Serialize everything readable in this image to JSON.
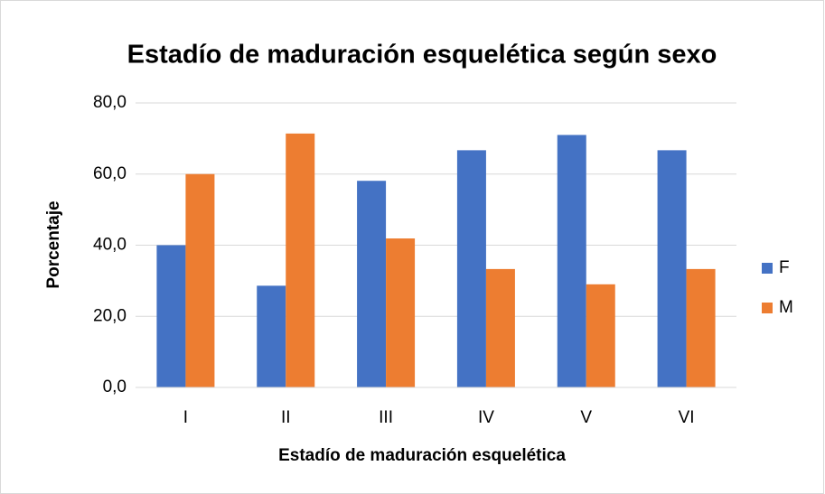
{
  "chart_data": {
    "type": "bar",
    "title": "Estadío de maduración esquelética según sexo",
    "x_label": "Estadío de maduración esquelética",
    "y_label": "Porcentaje",
    "categories": [
      "I",
      "II",
      "III",
      "IV",
      "V",
      "VI"
    ],
    "series": [
      {
        "name": "F",
        "color": "#4472c4",
        "values": [
          40,
          28.6,
          58.1,
          66.7,
          71.0,
          66.7
        ]
      },
      {
        "name": "M",
        "color": "#ed7d31",
        "values": [
          60,
          71.4,
          41.9,
          33.3,
          29.0,
          33.3
        ]
      }
    ],
    "ylim": [
      0,
      80
    ],
    "yticks": [
      {
        "value": 0,
        "label": "0,0"
      },
      {
        "value": 20,
        "label": "20,0"
      },
      {
        "value": 40,
        "label": "40,0"
      },
      {
        "value": 60,
        "label": "60,0"
      },
      {
        "value": 80,
        "label": "80,0"
      }
    ],
    "grid": true,
    "legend": "right"
  }
}
